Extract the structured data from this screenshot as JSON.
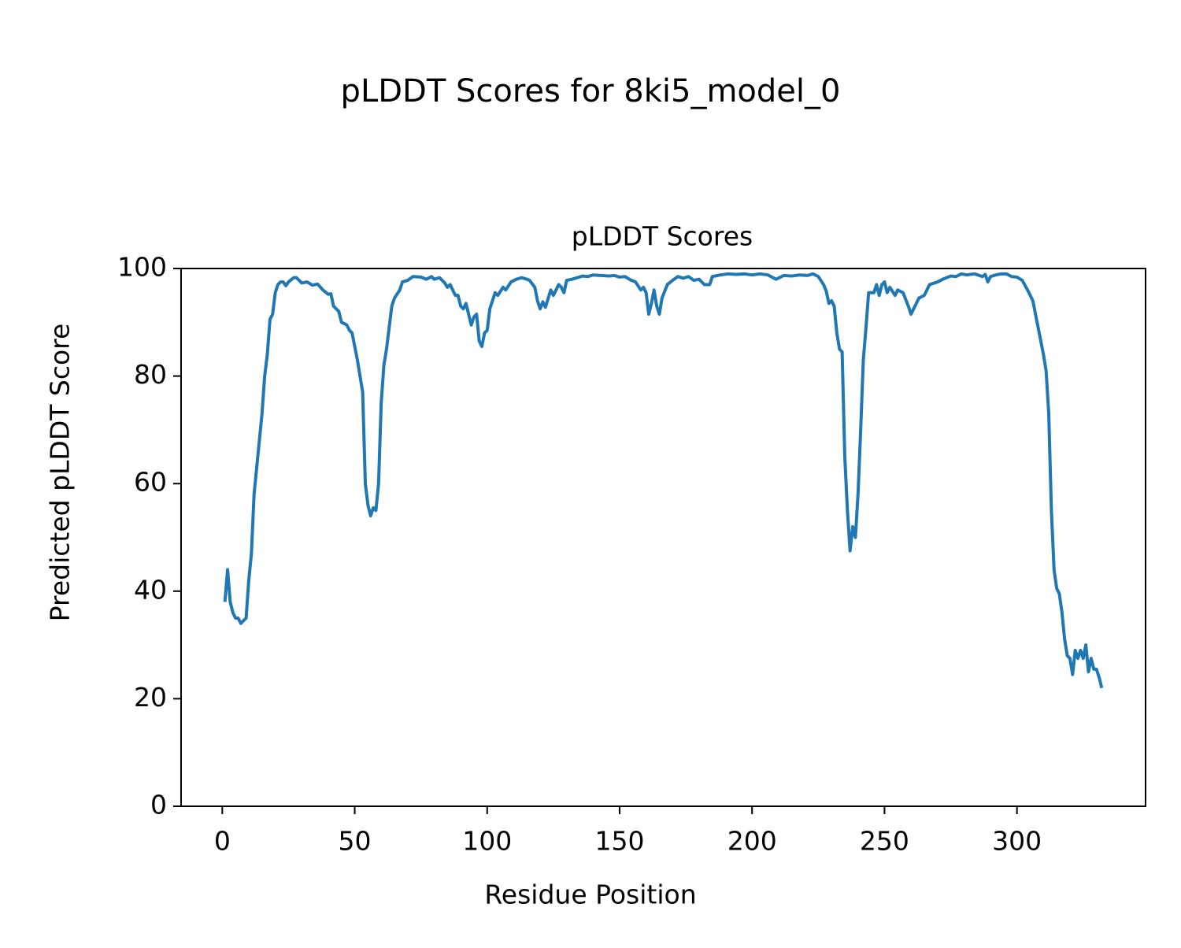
{
  "chart_data": {
    "type": "line",
    "title": "pLDDT Scores for 8ki5_model_0",
    "subtitle": "pLDDT Scores",
    "x_label": "Residue Position",
    "y_label": "Predicted pLDDT Score",
    "xlim": [
      -15.55,
      348.55
    ],
    "ylim": [
      0,
      100
    ],
    "xticks": [
      0,
      50,
      100,
      150,
      200,
      250,
      300
    ],
    "yticks": [
      0,
      20,
      40,
      60,
      80,
      100
    ],
    "grid": false,
    "series": [
      {
        "color": "#1f77b4",
        "x": [
          1,
          2,
          3,
          4,
          5,
          6,
          7,
          8,
          9,
          10,
          11,
          12,
          13,
          14,
          15,
          16,
          17,
          18,
          19,
          20,
          21,
          22,
          23,
          24,
          25,
          27,
          28,
          30,
          32,
          34,
          36,
          38,
          40,
          41,
          42,
          44,
          45,
          47,
          48,
          49,
          50,
          51,
          52,
          53,
          54,
          55,
          56,
          57,
          58,
          59,
          60,
          61,
          62,
          63,
          64,
          65,
          67,
          68,
          70,
          72,
          75,
          77,
          79,
          80,
          82,
          84,
          85,
          86,
          88,
          89,
          90,
          91,
          92,
          93,
          94,
          95,
          96,
          97,
          98,
          99,
          100,
          101,
          103,
          104,
          106,
          107,
          109,
          111,
          113,
          115,
          116,
          118,
          119,
          120,
          121,
          122,
          124,
          125,
          127,
          128,
          129,
          130,
          132,
          134,
          136,
          138,
          140,
          143,
          146,
          148,
          150,
          152,
          154,
          156,
          158,
          159,
          160,
          161,
          162,
          163,
          164,
          165,
          166,
          168,
          170,
          172,
          174,
          176,
          178,
          180,
          182,
          184,
          185,
          188,
          191,
          194,
          197,
          200,
          203,
          206,
          209,
          212,
          215,
          218,
          221,
          223,
          225,
          227,
          228,
          229,
          230,
          231,
          232,
          233,
          234,
          235,
          236,
          237,
          238,
          239,
          240,
          241,
          242,
          243,
          244,
          246,
          247,
          248,
          249,
          250,
          251,
          252,
          254,
          255,
          257,
          259,
          260,
          262,
          263,
          265,
          267,
          270,
          272,
          275,
          277,
          279,
          281,
          284,
          287,
          288,
          289,
          290,
          292,
          294,
          296,
          298,
          300,
          302,
          304,
          306,
          308,
          310,
          311,
          312,
          313,
          314,
          315,
          316,
          317,
          318,
          319,
          320,
          321,
          322,
          323,
          324,
          325,
          326,
          327,
          328,
          329,
          330,
          331,
          332
        ],
        "values": [
          38,
          44,
          38,
          36,
          35,
          35,
          34,
          34.5,
          35,
          42,
          47,
          58,
          63,
          68,
          73,
          80,
          84,
          90.5,
          91.5,
          95.5,
          97,
          97.5,
          97.5,
          96.8,
          97.5,
          98.3,
          98.3,
          97.3,
          97.5,
          96.9,
          97.1,
          96,
          95.2,
          95.3,
          93,
          92,
          90,
          89.5,
          88.5,
          88,
          85.5,
          83,
          80,
          77,
          60,
          56,
          54,
          55.5,
          55,
          60,
          75,
          82,
          85,
          89,
          93,
          94.5,
          96,
          97.5,
          97.8,
          98.5,
          98.4,
          98,
          98.5,
          98,
          98.3,
          97.3,
          96.5,
          97,
          95,
          95,
          93,
          92.5,
          93.5,
          91.5,
          89.5,
          91,
          91.5,
          86.5,
          85.5,
          88,
          88.5,
          92.5,
          95.5,
          95,
          96.5,
          96,
          97.5,
          98,
          98.3,
          98,
          97.8,
          96.5,
          94,
          92.5,
          93.8,
          92.8,
          96,
          95,
          97,
          96.5,
          95.5,
          97.8,
          98,
          98.3,
          98.6,
          98.5,
          98.8,
          98.7,
          98.6,
          98.7,
          98.4,
          98.5,
          97.9,
          97.5,
          96,
          96.5,
          95.5,
          91.5,
          93.5,
          96,
          93,
          91.5,
          94.5,
          97,
          97.8,
          98.5,
          98.2,
          98.5,
          97.8,
          98,
          97,
          97,
          98.5,
          98.8,
          99,
          98.9,
          99,
          98.8,
          99,
          98.8,
          98,
          98.7,
          98.6,
          98.8,
          98.7,
          99,
          98.5,
          97,
          95.8,
          93.5,
          94,
          93,
          88,
          85,
          84.5,
          65,
          55,
          47.5,
          52,
          50,
          58,
          70,
          83,
          89,
          95.5,
          95.5,
          97,
          95,
          97,
          97.5,
          95.5,
          96.5,
          95,
          96,
          95.5,
          93,
          91.5,
          93.5,
          94.5,
          95,
          97,
          97.5,
          98,
          98.6,
          98.5,
          99,
          98.8,
          99,
          98.5,
          98.9,
          97.5,
          98.5,
          98.8,
          99,
          99,
          98.5,
          98.4,
          97.8,
          96,
          94,
          89,
          84,
          81,
          73,
          55,
          44,
          40.5,
          39.5,
          36,
          31,
          28,
          27.5,
          24.5,
          29,
          27.5,
          29,
          27.5,
          30,
          25,
          27.5,
          25.5,
          25.5,
          24,
          22
        ]
      }
    ]
  }
}
